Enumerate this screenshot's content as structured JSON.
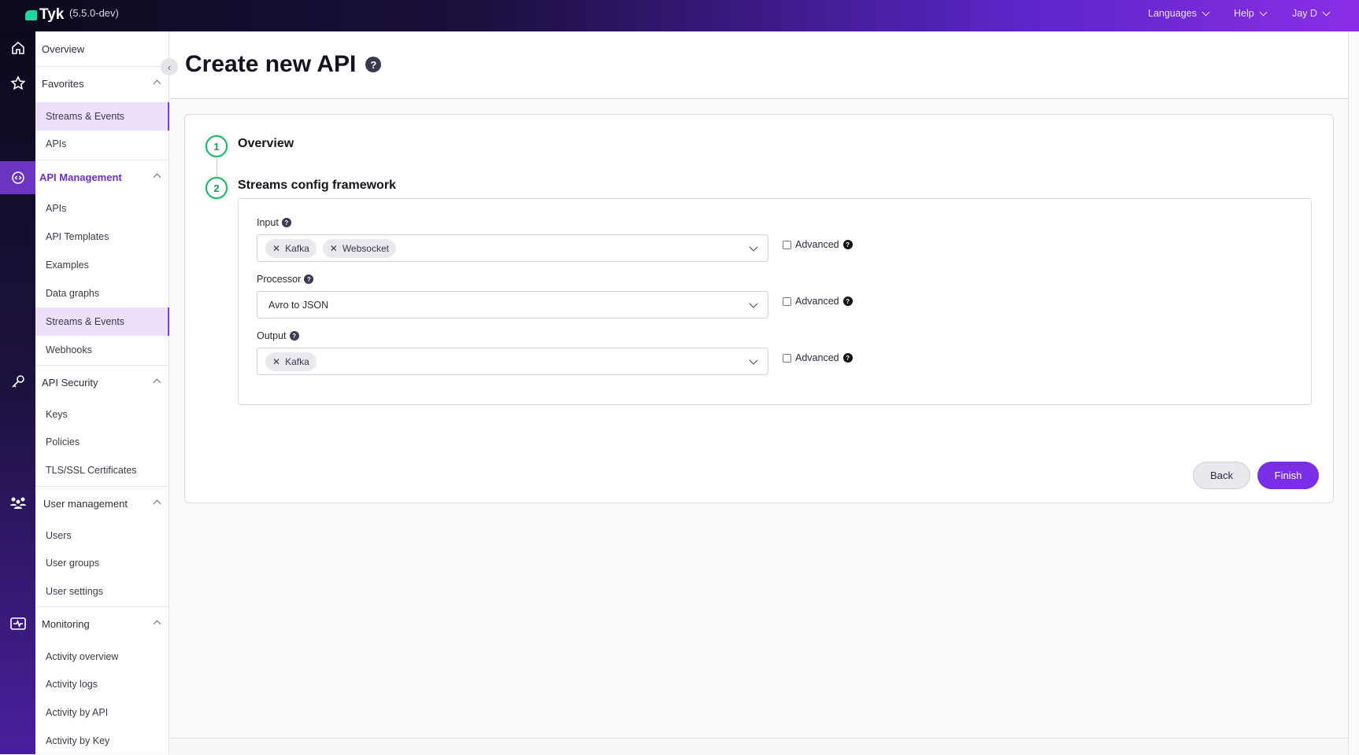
{
  "header": {
    "logo": "Tyk",
    "version": "(5.5.0-dev)",
    "menus": [
      "Languages",
      "Help",
      "Jay D"
    ]
  },
  "iconbar": [
    "home-icon",
    "star-icon",
    "api-management-icon",
    "key-icon",
    "users-icon",
    "monitoring-icon"
  ],
  "sidebar": {
    "overview": "Overview",
    "groups": [
      {
        "label": "Favorites",
        "items": [
          "Streams & Events",
          "APIs"
        ]
      },
      {
        "label": "API Management",
        "items": [
          "APIs",
          "API Templates",
          "Examples",
          "Data graphs",
          "Streams & Events",
          "Webhooks"
        ]
      },
      {
        "label": "API Security",
        "items": [
          "Keys",
          "Policies",
          "TLS/SSL Certificates"
        ]
      },
      {
        "label": "User management",
        "items": [
          "Users",
          "User groups",
          "User settings"
        ]
      },
      {
        "label": "Monitoring",
        "items": [
          "Activity overview",
          "Activity logs",
          "Activity by API",
          "Activity by Key"
        ]
      }
    ]
  },
  "page": {
    "title": "Create new API",
    "help": "?"
  },
  "steps": [
    {
      "num": "1",
      "title": "Overview"
    },
    {
      "num": "2",
      "title": "Streams config framework"
    }
  ],
  "form": {
    "input": {
      "label": "Input",
      "chips": [
        "Kafka",
        "Websocket"
      ],
      "advanced": "Advanced"
    },
    "processor": {
      "label": "Processor",
      "value": "Avro to JSON",
      "advanced": "Advanced"
    },
    "output": {
      "label": "Output",
      "chips": [
        "Kafka"
      ],
      "advanced": "Advanced"
    }
  },
  "buttons": {
    "back": "Back",
    "finish": "Finish"
  },
  "colors": {
    "accent": "#7a2fe6",
    "step": "#23b26b",
    "brand": "#20d6a2"
  }
}
